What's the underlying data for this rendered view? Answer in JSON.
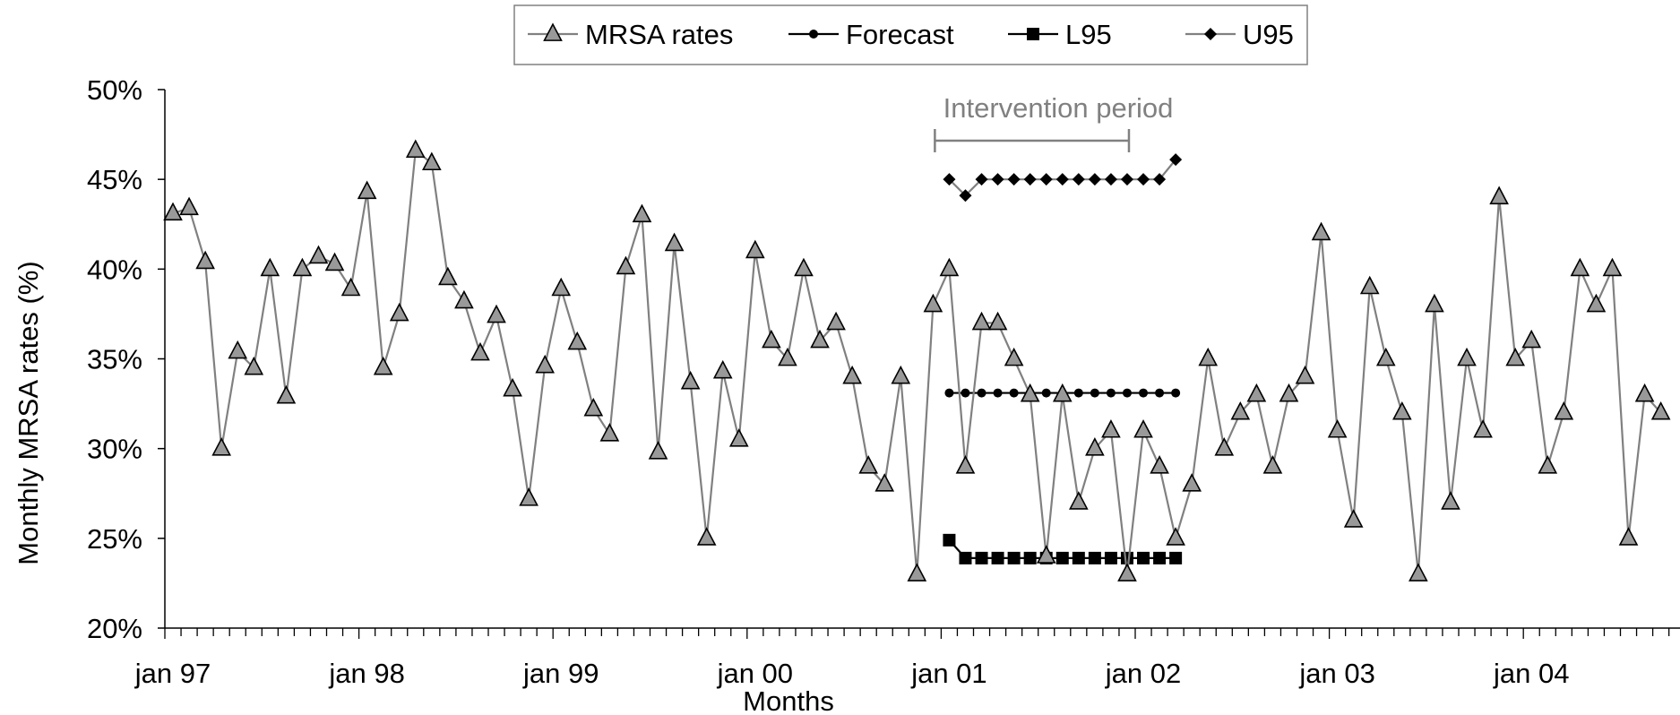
{
  "chart_data": {
    "type": "line",
    "xlabel": "Months",
    "ylabel": "Monthly MRSA rates (%)",
    "ylim": [
      20,
      50
    ],
    "y_ticks": [
      "20%",
      "25%",
      "30%",
      "35%",
      "40%",
      "45%",
      "50%"
    ],
    "x_tick_labels": [
      "jan 97",
      "jan 98",
      "jan 99",
      "jan 00",
      "jan 01",
      "jan 02",
      "jan 03",
      "jan 04"
    ],
    "annotation": {
      "text": "Intervention period",
      "start": "jan 01",
      "end": "jan 02"
    },
    "legend_position": "top-center",
    "series": [
      {
        "name": "MRSA rates",
        "marker": "triangle",
        "color": "#808080",
        "start": "jan 97",
        "values": [
          43.1,
          43.4,
          40.4,
          30.0,
          35.4,
          34.5,
          40.0,
          32.9,
          40.0,
          40.7,
          40.3,
          38.9,
          44.3,
          34.5,
          37.5,
          46.6,
          45.9,
          39.5,
          38.2,
          35.3,
          37.4,
          33.3,
          27.2,
          34.6,
          38.9,
          35.9,
          32.2,
          30.8,
          40.1,
          43.0,
          29.8,
          41.4,
          33.7,
          25.0,
          34.3,
          30.5,
          41.0,
          36.0,
          35.0,
          40.0,
          36.0,
          37.0,
          34.0,
          29.0,
          28.0,
          34.0,
          23.0,
          38.0,
          40.0,
          29.0,
          37.0,
          37.0,
          35.0,
          33.0,
          24.0,
          33.0,
          27.0,
          30.0,
          31.0,
          23.0,
          31.0,
          29.0,
          25.0,
          28.0,
          35.0,
          30.0,
          32.0,
          33.0,
          29.0,
          33.0,
          34.0,
          42.0,
          31.0,
          26.0,
          39.0,
          35.0,
          32.0,
          23.0,
          38.0,
          27.0,
          35.0,
          31.0,
          44.0,
          35.0,
          36.0,
          29.0,
          32.0,
          40.0,
          38.0,
          40.0,
          25.0,
          33.0,
          32.0
        ]
      },
      {
        "name": "Forecast",
        "marker": "circle",
        "color": "#000000",
        "start": "jan 01",
        "values": [
          33.1,
          33.1,
          33.1,
          33.1,
          33.1,
          33.1,
          33.1,
          33.1,
          33.1,
          33.1,
          33.1,
          33.1,
          33.1,
          33.1,
          33.1
        ]
      },
      {
        "name": "L95",
        "marker": "square",
        "color": "#000000",
        "start": "jan 01",
        "values": [
          24.9,
          23.9,
          23.9,
          23.9,
          23.9,
          23.9,
          23.9,
          23.9,
          23.9,
          23.9,
          23.9,
          23.9,
          23.9,
          23.9,
          23.9
        ]
      },
      {
        "name": "U95",
        "marker": "diamond",
        "color": "#808080",
        "start": "jan 01",
        "values": [
          45.0,
          44.1,
          45.0,
          45.0,
          45.0,
          45.0,
          45.0,
          45.0,
          45.0,
          45.0,
          45.0,
          45.0,
          45.0,
          45.0,
          46.1
        ]
      }
    ]
  }
}
